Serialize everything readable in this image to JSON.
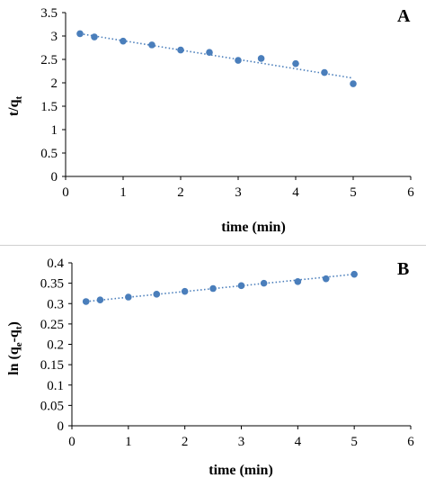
{
  "chart_data": [
    {
      "type": "scatter",
      "panel_label": "A",
      "xlabel": "time (min)",
      "ylabel": "t/q",
      "ylabel_sub": "t",
      "xlim": [
        0,
        6
      ],
      "ylim": [
        0,
        3.5
      ],
      "xticks": [
        "0",
        "1",
        "2",
        "3",
        "4",
        "5",
        "6"
      ],
      "yticks": [
        "0",
        "0.5",
        "1",
        "1.5",
        "2",
        "2.5",
        "3",
        "3.5"
      ],
      "grid": false,
      "marker_color": "#4a7ebb",
      "trendline": {
        "style": "dotted",
        "from": [
          0.25,
          3.05
        ],
        "to": [
          5.0,
          2.1
        ]
      },
      "series": [
        {
          "x": [
            0.25,
            0.5,
            1.0,
            1.5,
            2.0,
            2.5,
            3.0,
            3.4,
            4.0,
            4.5,
            5.0
          ],
          "y": [
            3.05,
            2.98,
            2.89,
            2.81,
            2.7,
            2.65,
            2.48,
            2.52,
            2.41,
            2.22,
            1.98
          ]
        }
      ]
    },
    {
      "type": "scatter",
      "panel_label": "B",
      "xlabel": "time (min)",
      "ylabel": "ln (q",
      "ylabel_sub1": "e",
      "ylabel_mid": "-q",
      "ylabel_sub2": "t",
      "ylabel_end": ")",
      "xlim": [
        0,
        6
      ],
      "ylim": [
        0,
        0.4
      ],
      "xticks": [
        "0",
        "1",
        "2",
        "3",
        "4",
        "5",
        "6"
      ],
      "yticks": [
        "0",
        "0.05",
        "0.1",
        "0.15",
        "0.2",
        "0.25",
        "0.3",
        "0.35",
        "0.4"
      ],
      "grid": false,
      "marker_color": "#4a7ebb",
      "trendline": {
        "style": "dotted",
        "from": [
          0.25,
          0.305
        ],
        "to": [
          5.0,
          0.372
        ]
      },
      "series": [
        {
          "x": [
            0.25,
            0.5,
            1.0,
            1.5,
            2.0,
            2.5,
            3.0,
            3.4,
            4.0,
            4.5,
            5.0
          ],
          "y": [
            0.305,
            0.309,
            0.316,
            0.323,
            0.33,
            0.337,
            0.344,
            0.35,
            0.354,
            0.361,
            0.372
          ]
        }
      ]
    }
  ]
}
